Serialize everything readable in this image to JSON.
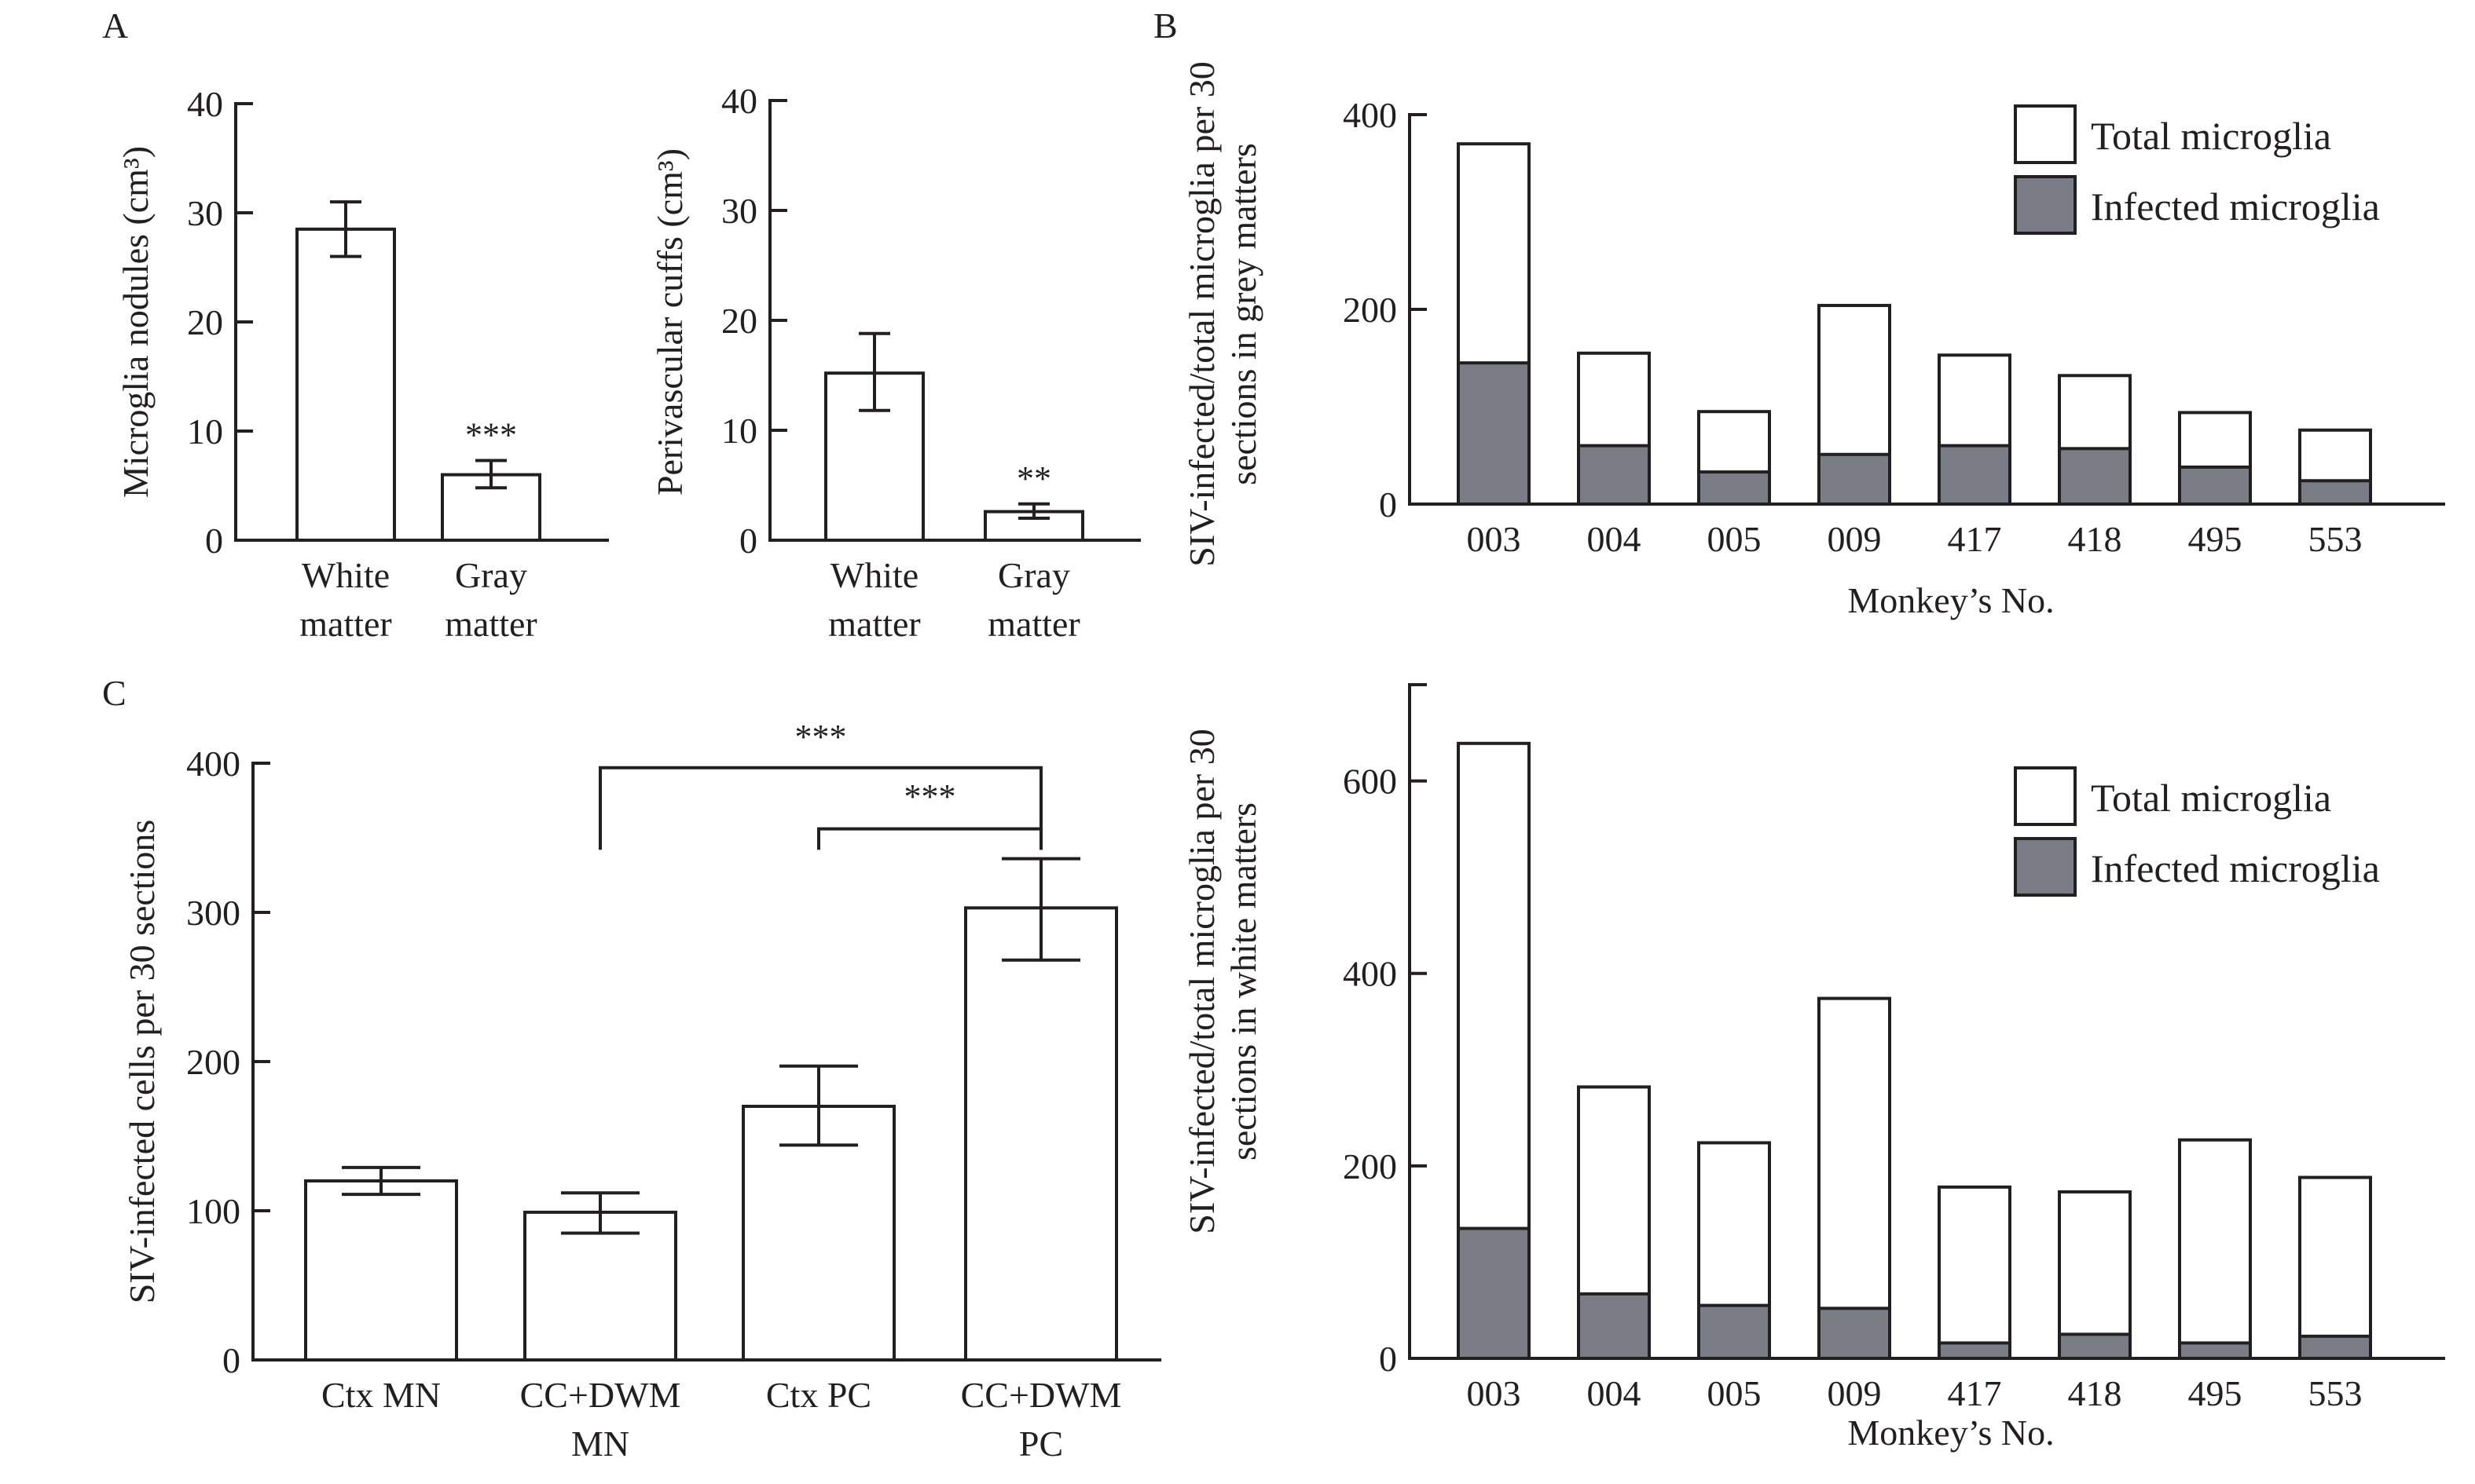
{
  "panel_labels": {
    "A": "A",
    "B": "B",
    "C": "C"
  },
  "chart_data": [
    {
      "id": "A1",
      "type": "bar",
      "panel": "A",
      "title": "",
      "ylabel": "Microglia nodules (cm³)",
      "xlabel": "",
      "categories": [
        [
          "White",
          "matter"
        ],
        [
          "Gray",
          "matter"
        ]
      ],
      "values": [
        28.5,
        6.0
      ],
      "errors": [
        [
          26.0,
          31.0
        ],
        [
          4.8,
          7.3
        ]
      ],
      "significance": [
        "",
        "***"
      ],
      "ylim": [
        0,
        40
      ],
      "yticks": [
        0,
        10,
        20,
        30,
        40
      ],
      "grid": false
    },
    {
      "id": "A2",
      "type": "bar",
      "panel": "A",
      "title": "",
      "ylabel": "Perivascular cuffs (cm³)",
      "xlabel": "",
      "categories": [
        [
          "White",
          "matter"
        ],
        [
          "Gray",
          "matter"
        ]
      ],
      "values": [
        15.2,
        2.6
      ],
      "errors": [
        [
          11.8,
          18.8
        ],
        [
          2.0,
          3.3
        ]
      ],
      "significance": [
        "",
        "**"
      ],
      "ylim": [
        0,
        40
      ],
      "yticks": [
        0,
        10,
        20,
        30,
        40
      ],
      "grid": false
    },
    {
      "id": "B1",
      "type": "bar",
      "panel": "B",
      "title": "",
      "ylabel": [
        "SIV-infected/total microglia per 30",
        "sections in grey matters"
      ],
      "xlabel": "Monkey’s No.",
      "categories": [
        "003",
        "004",
        "005",
        "009",
        "417",
        "418",
        "495",
        "553"
      ],
      "series": [
        {
          "name": "Total microglia",
          "values": [
            370,
            155,
            95,
            204,
            153,
            132,
            94,
            76
          ]
        },
        {
          "name": "Infected microglia",
          "values": [
            145,
            60,
            33,
            51,
            60,
            57,
            38,
            24
          ]
        }
      ],
      "ylim": [
        0,
        400
      ],
      "yticks": [
        0,
        200,
        400
      ],
      "legend": "top-right",
      "grid": false
    },
    {
      "id": "B2",
      "type": "bar",
      "panel": "B",
      "title": "",
      "ylabel": [
        "SIV-infected/total microglia per 30",
        "sections in white matters"
      ],
      "xlabel": "Monkey’s No.",
      "categories": [
        "003",
        "004",
        "005",
        "009",
        "417",
        "418",
        "495",
        "553"
      ],
      "series": [
        {
          "name": "Total microglia",
          "values": [
            639,
            282,
            224,
            374,
            178,
            173,
            227,
            188
          ]
        },
        {
          "name": "Infected microglia",
          "values": [
            135,
            67,
            55,
            52,
            16,
            25,
            16,
            23
          ]
        }
      ],
      "ylim": [
        0,
        700
      ],
      "yticks": [
        0,
        200,
        400,
        600
      ],
      "legend": "top-right",
      "grid": false
    },
    {
      "id": "C",
      "type": "bar",
      "panel": "C",
      "title": "",
      "ylabel": "SIV-infected cells per 30 sections",
      "xlabel": "",
      "categories": [
        [
          "Ctx MN"
        ],
        [
          "CC+DWM",
          "MN"
        ],
        [
          "Ctx PC"
        ],
        [
          "CC+DWM",
          "PC"
        ]
      ],
      "values": [
        120,
        99,
        170,
        303
      ],
      "errors": [
        [
          111,
          129
        ],
        [
          85,
          112
        ],
        [
          144,
          197
        ],
        [
          268,
          336
        ]
      ],
      "comparisons": [
        {
          "from": 1,
          "to": 3,
          "label": "***"
        },
        {
          "from": 2,
          "to": 3,
          "label": "***"
        }
      ],
      "ylim": [
        0,
        400
      ],
      "yticks": [
        0,
        100,
        200,
        300,
        400
      ],
      "grid": false
    }
  ],
  "colors": {
    "ink": "#231f20",
    "infected_fill": "#7a7d85",
    "total_fill": "#ffffff"
  }
}
